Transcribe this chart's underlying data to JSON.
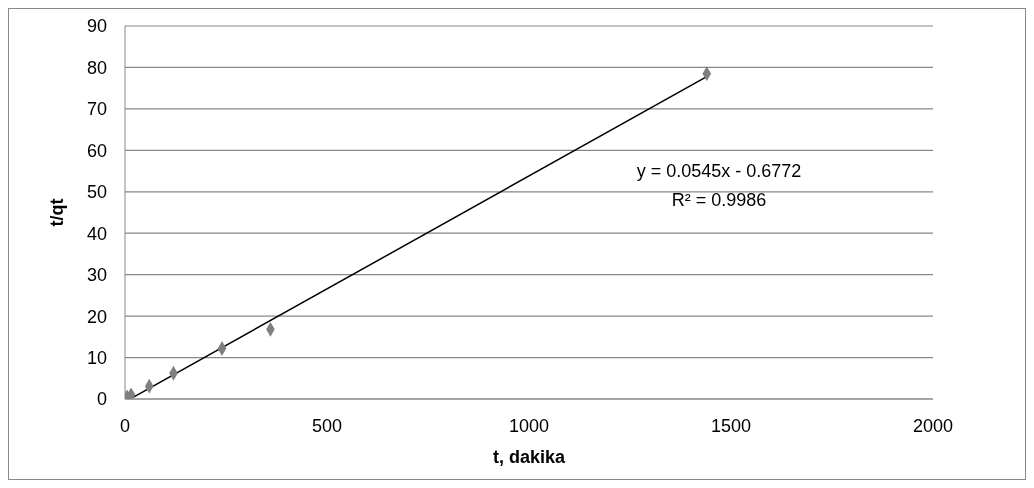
{
  "chart_data": {
    "type": "scatter",
    "xlabel": "t, dakika",
    "ylabel": "t/qt",
    "series": [
      {
        "type": "scatter",
        "color": "#7f7f7f",
        "x": [
          5,
          15,
          60,
          120,
          240,
          360,
          1440
        ],
        "values": [
          0.5,
          1.0,
          3.1,
          6.2,
          12.2,
          16.8,
          78.5
        ],
        "marker": "diamond"
      },
      {
        "type": "line",
        "color": "#000000",
        "x": [
          20,
          1440
        ],
        "values": [
          0.4,
          77.8
        ],
        "marker": "none",
        "line_style": "solid"
      }
    ],
    "annotations": [
      "y = 0.0545x - 0.6772",
      "R² = 0.9986"
    ],
    "xlim": [
      0,
      2000
    ],
    "xticks": [
      0,
      500,
      1000,
      1500,
      2000
    ],
    "ylim": [
      0,
      90
    ],
    "yticks": [
      0,
      10,
      20,
      30,
      40,
      50,
      60,
      70,
      80,
      90
    ],
    "grid": "y"
  }
}
